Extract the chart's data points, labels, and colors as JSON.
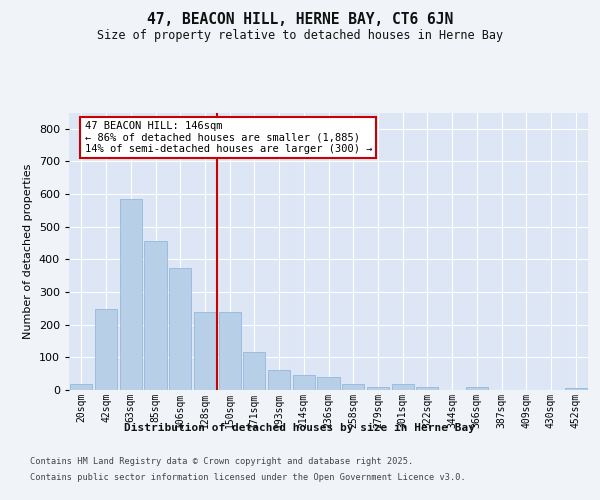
{
  "title": "47, BEACON HILL, HERNE BAY, CT6 6JN",
  "subtitle": "Size of property relative to detached houses in Herne Bay",
  "xlabel": "Distribution of detached houses by size in Herne Bay",
  "ylabel": "Number of detached properties",
  "categories": [
    "20sqm",
    "42sqm",
    "63sqm",
    "85sqm",
    "106sqm",
    "128sqm",
    "150sqm",
    "171sqm",
    "193sqm",
    "214sqm",
    "236sqm",
    "258sqm",
    "279sqm",
    "301sqm",
    "322sqm",
    "344sqm",
    "366sqm",
    "387sqm",
    "409sqm",
    "430sqm",
    "452sqm"
  ],
  "values": [
    18,
    247,
    585,
    457,
    375,
    238,
    238,
    115,
    60,
    45,
    40,
    18,
    10,
    18,
    10,
    0,
    10,
    0,
    0,
    0,
    5
  ],
  "bar_color": "#b8cfe8",
  "bar_edge_color": "#8ab0d8",
  "vline_color": "#cc0000",
  "vline_index": 6,
  "annotation_text": "47 BEACON HILL: 146sqm\n← 86% of detached houses are smaller (1,885)\n14% of semi-detached houses are larger (300) →",
  "ylim_max": 850,
  "yticks": [
    0,
    100,
    200,
    300,
    400,
    500,
    600,
    700,
    800
  ],
  "bg_color": "#dce6f5",
  "grid_color": "#ffffff",
  "footer1": "Contains HM Land Registry data © Crown copyright and database right 2025.",
  "footer2": "Contains public sector information licensed under the Open Government Licence v3.0."
}
